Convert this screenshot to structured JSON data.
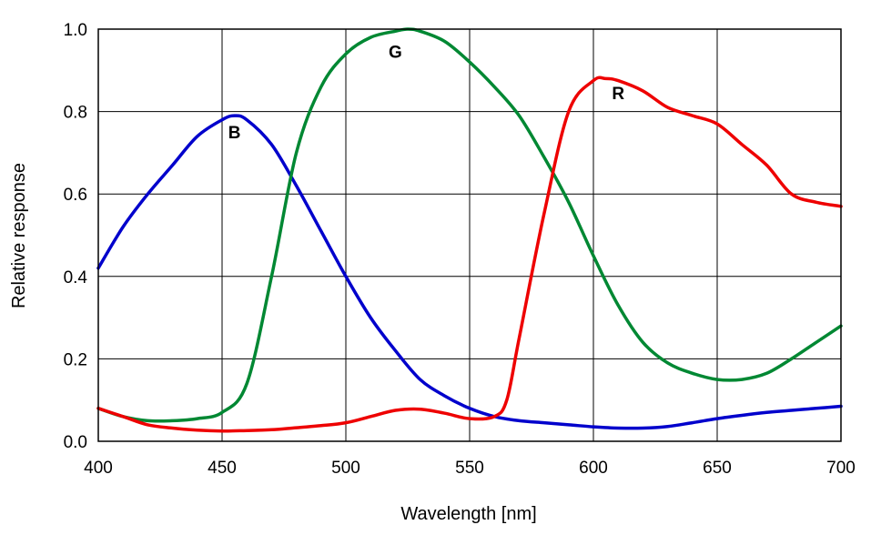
{
  "chart_data": {
    "type": "line",
    "title": "",
    "xlabel": "Wavelength [nm]",
    "ylabel": "Relative response",
    "xlim": [
      400,
      700
    ],
    "ylim": [
      0,
      1.0
    ],
    "x_ticks": [
      400,
      450,
      500,
      550,
      600,
      650,
      700
    ],
    "x_tick_labels": [
      "400",
      "450",
      "500",
      "550",
      "600",
      "650",
      "700"
    ],
    "y_ticks": [
      0,
      0.2,
      0.4,
      0.6,
      0.8,
      1.0
    ],
    "y_tick_labels": [
      "0.0",
      "0.2",
      "0.4",
      "0.6",
      "0.8",
      "1.0"
    ],
    "grid": true,
    "series": [
      {
        "name": "B",
        "color": "#0000cc",
        "x": [
          400,
          410,
          420,
          430,
          440,
          450,
          455,
          460,
          470,
          480,
          490,
          500,
          510,
          520,
          530,
          540,
          550,
          560,
          570,
          580,
          590,
          600,
          610,
          620,
          630,
          640,
          650,
          660,
          670,
          680,
          690,
          700
        ],
        "y": [
          0.42,
          0.52,
          0.6,
          0.67,
          0.74,
          0.78,
          0.79,
          0.78,
          0.72,
          0.62,
          0.51,
          0.4,
          0.3,
          0.22,
          0.15,
          0.11,
          0.08,
          0.06,
          0.05,
          0.045,
          0.04,
          0.035,
          0.032,
          0.032,
          0.036,
          0.045,
          0.055,
          0.063,
          0.07,
          0.075,
          0.08,
          0.085
        ]
      },
      {
        "name": "G",
        "color": "#008833",
        "x": [
          400,
          410,
          420,
          430,
          440,
          450,
          460,
          470,
          480,
          490,
          500,
          510,
          520,
          525,
          530,
          540,
          550,
          560,
          570,
          580,
          590,
          600,
          610,
          620,
          630,
          640,
          650,
          660,
          670,
          680,
          690,
          700
        ],
        "y": [
          0.08,
          0.06,
          0.05,
          0.05,
          0.055,
          0.07,
          0.14,
          0.4,
          0.7,
          0.86,
          0.94,
          0.98,
          0.995,
          1.0,
          0.995,
          0.97,
          0.92,
          0.86,
          0.79,
          0.69,
          0.58,
          0.45,
          0.33,
          0.24,
          0.19,
          0.165,
          0.15,
          0.15,
          0.165,
          0.2,
          0.24,
          0.28
        ]
      },
      {
        "name": "R",
        "color": "#ee0000",
        "x": [
          400,
          410,
          420,
          430,
          440,
          450,
          460,
          470,
          480,
          490,
          500,
          510,
          520,
          530,
          540,
          550,
          560,
          565,
          570,
          580,
          590,
          600,
          605,
          610,
          620,
          630,
          640,
          650,
          660,
          670,
          680,
          690,
          700
        ],
        "y": [
          0.08,
          0.06,
          0.04,
          0.032,
          0.027,
          0.025,
          0.026,
          0.028,
          0.033,
          0.038,
          0.045,
          0.06,
          0.075,
          0.078,
          0.068,
          0.055,
          0.06,
          0.1,
          0.25,
          0.55,
          0.8,
          0.875,
          0.88,
          0.875,
          0.85,
          0.81,
          0.79,
          0.77,
          0.72,
          0.67,
          0.6,
          0.58,
          0.57
        ]
      }
    ],
    "annotations": [
      "B",
      "G",
      "R"
    ]
  }
}
